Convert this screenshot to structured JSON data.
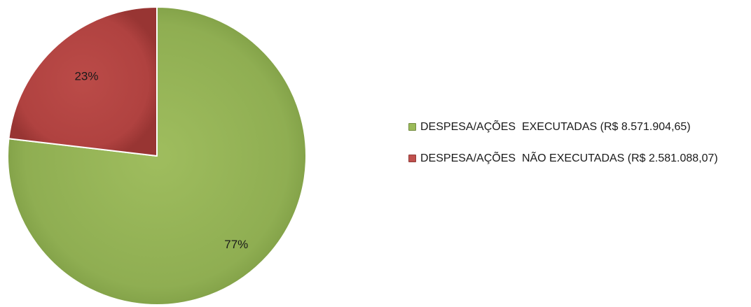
{
  "chart_data": {
    "type": "pie",
    "title": "",
    "slices": [
      {
        "name": "DESPESA/AÇÕES  EXECUTADAS (R$ 8.571.904,65)",
        "value": 8571904.65,
        "percent_label": "77%",
        "color": "#8fae52"
      },
      {
        "name": "DESPESA/AÇÕES  NÃO EXECUTADAS (R$ 2.581.088,07)",
        "value": 2581088.07,
        "percent_label": "23%",
        "color": "#b04240"
      }
    ],
    "start_angle": "12 o'clock",
    "direction": "clockwise",
    "legend_placement": "right"
  },
  "legend": {
    "items": [
      {
        "text": "DESPESA/AÇÕES  EXECUTADAS (R$ 8.571.904,65)",
        "color": "#9bbb59"
      },
      {
        "text": "DESPESA/AÇÕES  NÃO EXECUTADAS (R$ 2.581.088,07)",
        "color": "#c0504d"
      }
    ]
  }
}
